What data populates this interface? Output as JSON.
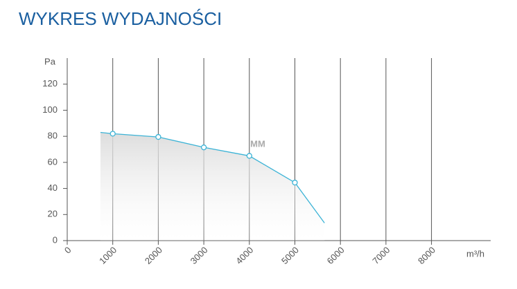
{
  "chart_data": {
    "type": "line",
    "title": "WYKRES WYDAJNOŚCI",
    "y_label": "Pa",
    "x_label": "m³/h",
    "annotation": "MM",
    "x": [
      730,
      1000,
      2000,
      3000,
      4000,
      5000,
      5650
    ],
    "series": [
      {
        "color": "#3bb3d6",
        "values": [
          83,
          82,
          79.5,
          71.5,
          65,
          44.5,
          13.5
        ]
      }
    ],
    "xlim": [
      0,
      9300
    ],
    "xticks": [
      0,
      1000,
      2000,
      3000,
      4000,
      5000,
      6000,
      7000,
      8000
    ],
    "ylim": [
      0,
      140
    ],
    "yticks": [
      0,
      20,
      40,
      60,
      80,
      100,
      120
    ],
    "grid": true
  }
}
